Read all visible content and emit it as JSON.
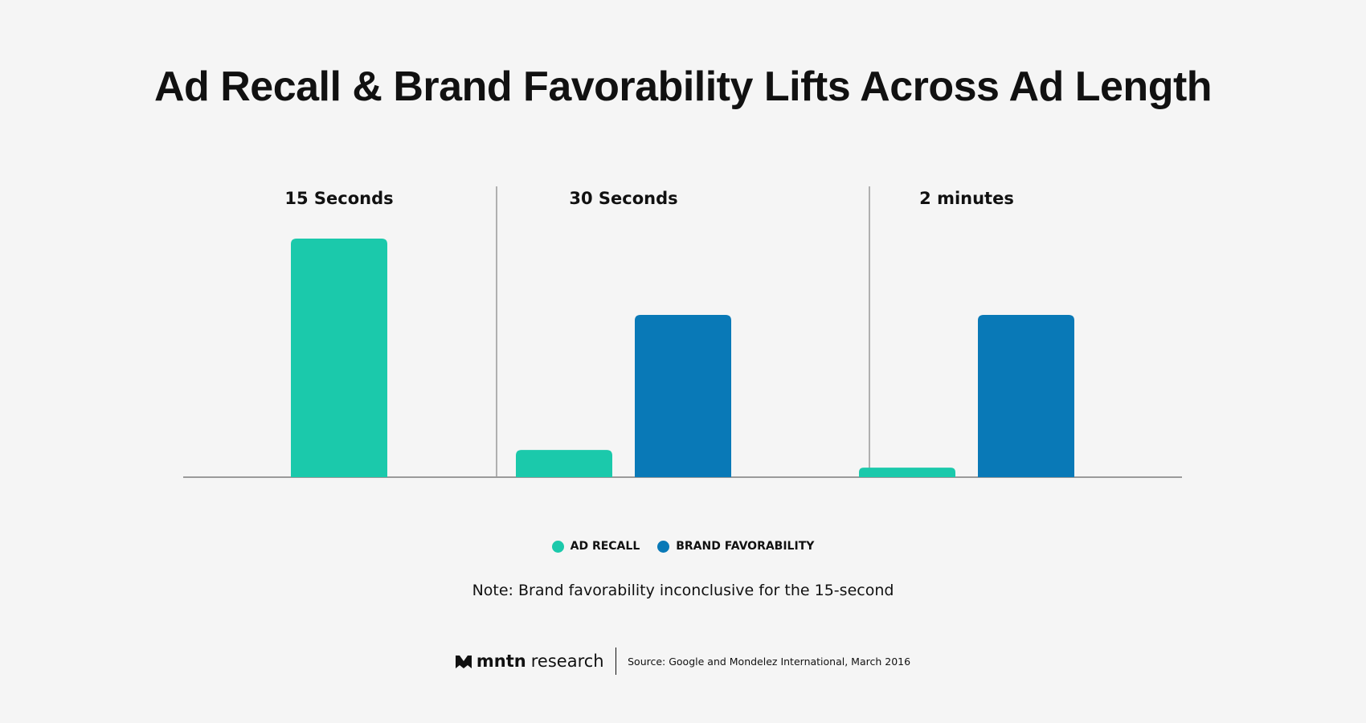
{
  "chart_data": {
    "type": "bar",
    "title": "Ad Recall & Brand Favorability Lifts Across Ad Length",
    "categories": [
      "15 Seconds",
      "30 Seconds",
      "2 minutes"
    ],
    "series": [
      {
        "name": "AD RECALL",
        "color": "#1bc9ab",
        "values": [
          100,
          11.4,
          4
        ]
      },
      {
        "name": "BRAND FAVORABILITY",
        "color": "#0979b7",
        "values": [
          null,
          68,
          68
        ]
      }
    ],
    "ylim": [
      0,
      100
    ],
    "y_axis_shown": false,
    "grid": false,
    "legend_placement": "bottom",
    "note": "Note: Brand favorability inconclusive for the 15-second"
  },
  "footer": {
    "brand_bold": "mntn",
    "brand_light": "research",
    "source": "Source: Google and Mondelez International, March 2016"
  }
}
